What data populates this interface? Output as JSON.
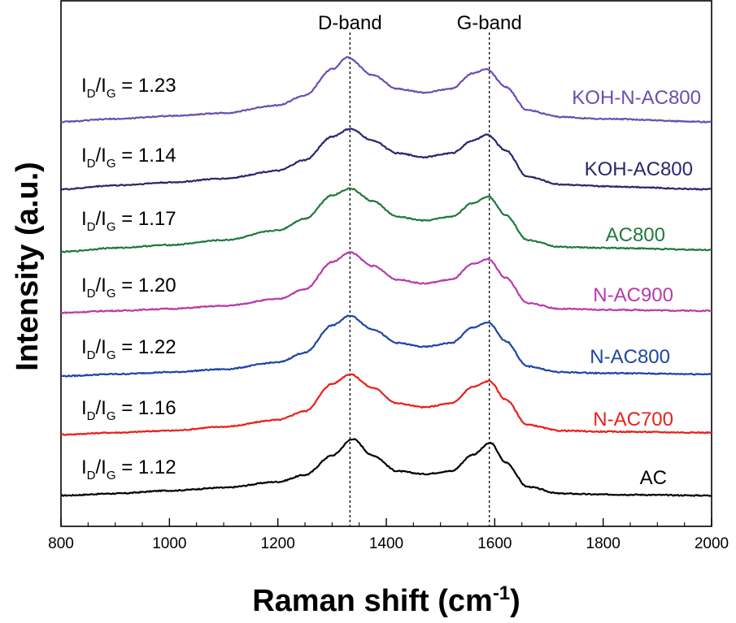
{
  "chart_data": {
    "type": "line",
    "xlabel": "Raman shift (cm",
    "xlabel_sup": "-1",
    "xlabel_close": ")",
    "ylabel": "Intensity (a.u.)",
    "xlim": [
      800,
      2000
    ],
    "x_ticks": [
      "800",
      "1000",
      "1200",
      "1400",
      "1600",
      "1800",
      "2000"
    ],
    "y_ticks_shown": false,
    "grid": false,
    "reference_lines": [
      {
        "label": "D-band",
        "x": 1333,
        "style": "dotted"
      },
      {
        "label": "G-band",
        "x": 1590,
        "style": "dotted"
      }
    ],
    "series": [
      {
        "name": "AC",
        "color": "#000000",
        "ratio_prefix": "I",
        "ratio_sub1": "D",
        "ratio_mid": "/I",
        "ratio_sub2": "G",
        "ratio_value": " = 1.12",
        "ratio": 1.12,
        "d_peak": 1338,
        "g_peak": 1592,
        "points": [
          [
            800,
            0.0
          ],
          [
            900,
            0.02
          ],
          [
            1000,
            0.05
          ],
          [
            1100,
            0.08
          ],
          [
            1200,
            0.14
          ],
          [
            1250,
            0.21
          ],
          [
            1300,
            0.41
          ],
          [
            1338,
            0.58
          ],
          [
            1375,
            0.41
          ],
          [
            1420,
            0.25
          ],
          [
            1470,
            0.22
          ],
          [
            1520,
            0.25
          ],
          [
            1560,
            0.42
          ],
          [
            1592,
            0.54
          ],
          [
            1620,
            0.34
          ],
          [
            1660,
            0.09
          ],
          [
            1720,
            0.02
          ],
          [
            1800,
            0.01
          ],
          [
            2000,
            0.0
          ]
        ]
      },
      {
        "name": "N-AC700",
        "color": "#e8201a",
        "ratio_prefix": "I",
        "ratio_sub1": "D",
        "ratio_mid": "/I",
        "ratio_sub2": "G",
        "ratio_value": " = 1.16",
        "ratio": 1.16,
        "d_peak": 1333,
        "g_peak": 1590,
        "points": [
          [
            800,
            0.0
          ],
          [
            900,
            0.02
          ],
          [
            1000,
            0.04
          ],
          [
            1100,
            0.08
          ],
          [
            1200,
            0.15
          ],
          [
            1250,
            0.24
          ],
          [
            1300,
            0.52
          ],
          [
            1333,
            0.62
          ],
          [
            1375,
            0.48
          ],
          [
            1420,
            0.32
          ],
          [
            1470,
            0.28
          ],
          [
            1520,
            0.32
          ],
          [
            1560,
            0.49
          ],
          [
            1590,
            0.55
          ],
          [
            1620,
            0.36
          ],
          [
            1660,
            0.1
          ],
          [
            1720,
            0.04
          ],
          [
            1800,
            0.03
          ],
          [
            2000,
            0.02
          ]
        ]
      },
      {
        "name": "N-AC800",
        "color": "#1d45a8",
        "ratio_prefix": "I",
        "ratio_sub1": "D",
        "ratio_mid": "/I",
        "ratio_sub2": "G",
        "ratio_value": " = 1.22",
        "ratio": 1.22,
        "d_peak": 1333,
        "g_peak": 1588,
        "points": [
          [
            800,
            0.0
          ],
          [
            900,
            0.02
          ],
          [
            1000,
            0.04
          ],
          [
            1100,
            0.07
          ],
          [
            1200,
            0.14
          ],
          [
            1250,
            0.24
          ],
          [
            1300,
            0.52
          ],
          [
            1333,
            0.62
          ],
          [
            1375,
            0.48
          ],
          [
            1420,
            0.34
          ],
          [
            1470,
            0.3
          ],
          [
            1520,
            0.34
          ],
          [
            1560,
            0.5
          ],
          [
            1588,
            0.55
          ],
          [
            1620,
            0.36
          ],
          [
            1660,
            0.1
          ],
          [
            1720,
            0.04
          ],
          [
            1800,
            0.03
          ],
          [
            2000,
            0.02
          ]
        ]
      },
      {
        "name": "N-AC900",
        "color": "#b83aaa",
        "ratio_prefix": "I",
        "ratio_sub1": "D",
        "ratio_mid": "/I",
        "ratio_sub2": "G",
        "ratio_value": " = 1.20",
        "ratio": 1.2,
        "d_peak": 1333,
        "g_peak": 1588,
        "points": [
          [
            800,
            0.0
          ],
          [
            900,
            0.02
          ],
          [
            1000,
            0.04
          ],
          [
            1100,
            0.07
          ],
          [
            1200,
            0.14
          ],
          [
            1250,
            0.24
          ],
          [
            1300,
            0.52
          ],
          [
            1333,
            0.62
          ],
          [
            1375,
            0.48
          ],
          [
            1420,
            0.34
          ],
          [
            1470,
            0.3
          ],
          [
            1520,
            0.34
          ],
          [
            1560,
            0.5
          ],
          [
            1588,
            0.55
          ],
          [
            1620,
            0.36
          ],
          [
            1660,
            0.1
          ],
          [
            1720,
            0.04
          ],
          [
            1800,
            0.03
          ],
          [
            2000,
            0.02
          ]
        ]
      },
      {
        "name": "AC800",
        "color": "#1e7a3a",
        "ratio_prefix": "I",
        "ratio_sub1": "D",
        "ratio_mid": "/I",
        "ratio_sub2": "G",
        "ratio_value": " = 1.17",
        "ratio": 1.17,
        "d_peak": 1333,
        "g_peak": 1588,
        "points": [
          [
            800,
            0.0
          ],
          [
            900,
            0.04
          ],
          [
            1000,
            0.07
          ],
          [
            1100,
            0.12
          ],
          [
            1200,
            0.22
          ],
          [
            1250,
            0.34
          ],
          [
            1300,
            0.58
          ],
          [
            1333,
            0.65
          ],
          [
            1375,
            0.52
          ],
          [
            1420,
            0.36
          ],
          [
            1470,
            0.32
          ],
          [
            1520,
            0.36
          ],
          [
            1560,
            0.5
          ],
          [
            1588,
            0.57
          ],
          [
            1620,
            0.38
          ],
          [
            1660,
            0.12
          ],
          [
            1720,
            0.05
          ],
          [
            1800,
            0.04
          ],
          [
            2000,
            0.02
          ]
        ]
      },
      {
        "name": "KOH-AC800",
        "color": "#27276e",
        "ratio_prefix": "I",
        "ratio_sub1": "D",
        "ratio_mid": "/I",
        "ratio_sub2": "G",
        "ratio_value": " = 1.14",
        "ratio": 1.14,
        "d_peak": 1333,
        "g_peak": 1586,
        "points": [
          [
            800,
            0.0
          ],
          [
            900,
            0.04
          ],
          [
            1000,
            0.07
          ],
          [
            1100,
            0.11
          ],
          [
            1200,
            0.19
          ],
          [
            1250,
            0.3
          ],
          [
            1300,
            0.54
          ],
          [
            1333,
            0.62
          ],
          [
            1375,
            0.5
          ],
          [
            1420,
            0.37
          ],
          [
            1470,
            0.33
          ],
          [
            1520,
            0.37
          ],
          [
            1560,
            0.5
          ],
          [
            1586,
            0.56
          ],
          [
            1620,
            0.4
          ],
          [
            1660,
            0.13
          ],
          [
            1720,
            0.05
          ],
          [
            1800,
            0.03
          ],
          [
            2000,
            0.0
          ]
        ]
      },
      {
        "name": "KOH-N-AC800",
        "color": "#6a4eb0",
        "ratio_prefix": "I",
        "ratio_sub1": "D",
        "ratio_mid": "/I",
        "ratio_sub2": "G",
        "ratio_value": " = 1.23",
        "ratio": 1.23,
        "d_peak": 1328,
        "g_peak": 1585,
        "points": [
          [
            800,
            0.0
          ],
          [
            900,
            0.03
          ],
          [
            1000,
            0.06
          ],
          [
            1100,
            0.09
          ],
          [
            1200,
            0.17
          ],
          [
            1250,
            0.27
          ],
          [
            1300,
            0.54
          ],
          [
            1328,
            0.66
          ],
          [
            1375,
            0.48
          ],
          [
            1420,
            0.34
          ],
          [
            1470,
            0.3
          ],
          [
            1520,
            0.34
          ],
          [
            1560,
            0.5
          ],
          [
            1585,
            0.54
          ],
          [
            1620,
            0.36
          ],
          [
            1660,
            0.12
          ],
          [
            1720,
            0.05
          ],
          [
            1800,
            0.03
          ],
          [
            2000,
            0.0
          ]
        ]
      }
    ]
  }
}
